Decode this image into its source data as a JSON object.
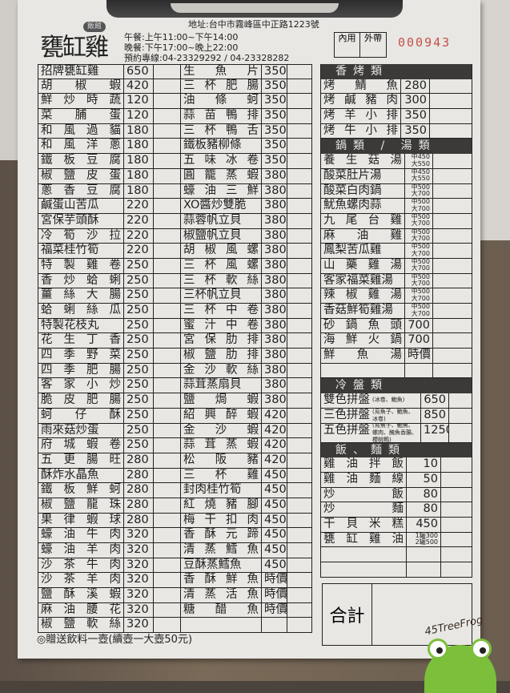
{
  "header": {
    "logo_text": "甕缸雞",
    "logo_badge": "飯館",
    "address": "地址:台中市霧峰區中正路1223號",
    "lunch": "午餐:上午11:00~下午14:00",
    "dinner": "晚餐:下午17:00~晚上22:00",
    "phone": "預約專線:04-23329292 / 04-23328282",
    "dine_in": "內用",
    "takeout": "外帶",
    "serial": "000943"
  },
  "left_items": [
    [
      "招牌甕缸雞",
      "650"
    ],
    [
      "胡 椒 蝦",
      "420"
    ],
    [
      "鮮 炒 時 蔬",
      "120"
    ],
    [
      "菜 脯 蛋",
      "120"
    ],
    [
      "和 風 過 貓",
      "180"
    ],
    [
      "和 風 洋 蔥",
      "180"
    ],
    [
      "鐵 板 豆 腐",
      "180"
    ],
    [
      "椒 鹽 皮 蛋",
      "180"
    ],
    [
      "蔥 香 豆 腐",
      "180"
    ],
    [
      "鹹蛋山苦瓜",
      "220"
    ],
    [
      "宮保芋頭酥",
      "220"
    ],
    [
      "冷 筍 沙 拉",
      "220"
    ],
    [
      "福菜桂竹筍",
      "220"
    ],
    [
      "特 製 雞 卷",
      "250"
    ],
    [
      "香 炒 蛤 蜊",
      "250"
    ],
    [
      "薑 絲 大 腸",
      "250"
    ],
    [
      "蛤 蜊 絲 瓜",
      "250"
    ],
    [
      "特製花枝丸",
      "250"
    ],
    [
      "花 生 丁 香",
      "250"
    ],
    [
      "四 季 野 菜",
      "250"
    ],
    [
      "四 季 肥 腸",
      "250"
    ],
    [
      "客 家 小 炒",
      "250"
    ],
    [
      "脆 皮 肥 腸",
      "250"
    ],
    [
      "蚵 仔 酥",
      "250"
    ],
    [
      "雨來菇炒蛋",
      "250"
    ],
    [
      "府 城 蝦 卷",
      "250"
    ],
    [
      "五 更 腸 旺",
      "280"
    ],
    [
      "酥炸水晶魚",
      "280"
    ],
    [
      "鐵 板 鮮 蚵",
      "280"
    ],
    [
      "椒 鹽 龍 珠",
      "280"
    ],
    [
      "果 律 蝦 球",
      "280"
    ],
    [
      "蠔 油 牛 肉",
      "320"
    ],
    [
      "蠔 油 羊 肉",
      "320"
    ],
    [
      "沙 茶 牛 肉",
      "320"
    ],
    [
      "沙 茶 羊 肉",
      "320"
    ],
    [
      "鹽 酥 溪 蝦",
      "320"
    ],
    [
      "麻 油 腰 花",
      "320"
    ],
    [
      "椒 鹽 軟 絲",
      "320"
    ]
  ],
  "middle_items": [
    [
      "生 魚 片",
      "350"
    ],
    [
      "三 杯 肥 腸",
      "350"
    ],
    [
      "油 條 蚵",
      "350"
    ],
    [
      "蒜 苗 鴨 排",
      "350"
    ],
    [
      "三 杯 鴨 舌",
      "350"
    ],
    [
      "鐵板豬柳條",
      "350"
    ],
    [
      "五 味 冰 卷",
      "350"
    ],
    [
      "圓 籠 蒸 蝦",
      "380"
    ],
    [
      "蠔 油 三 鮮",
      "380"
    ],
    [
      "XO醬炒雙脆",
      "380"
    ],
    [
      "蒜蓉帆立貝",
      "380"
    ],
    [
      "椒鹽帆立貝",
      "380"
    ],
    [
      "胡 椒 風 螺",
      "380"
    ],
    [
      "三 杯 風 螺",
      "380"
    ],
    [
      "三 杯 軟 絲",
      "380"
    ],
    [
      "三杯帆立貝",
      "380"
    ],
    [
      "三 杯 中 卷",
      "380"
    ],
    [
      "蜜 汁 中 卷",
      "380"
    ],
    [
      "宮 保 肋 排",
      "380"
    ],
    [
      "椒 鹽 肋 排",
      "380"
    ],
    [
      "金 沙 軟 絲",
      "380"
    ],
    [
      "蒜茸蒸扇貝",
      "380"
    ],
    [
      "鹽 焗 蝦",
      "380"
    ],
    [
      "紹 興 醉 蝦",
      "420"
    ],
    [
      "金 沙 蝦",
      "420"
    ],
    [
      "蒜 茸 蒸 蝦",
      "420"
    ],
    [
      "松 阪 豬",
      "420"
    ],
    [
      "三 杯 雞",
      "450"
    ],
    [
      "封肉桂竹筍",
      "450"
    ],
    [
      "紅 燒 豬 腳",
      "450"
    ],
    [
      "梅 干 扣 肉",
      "450"
    ],
    [
      "香 酥 元 蹄",
      "450"
    ],
    [
      "清 蒸 鱈 魚",
      "450"
    ],
    [
      "豆酥蒸鱈魚",
      "450"
    ],
    [
      "香 酥 鮮 魚",
      "時價"
    ],
    [
      "清 蒸 活 魚",
      "時價"
    ],
    [
      "糖 醋 魚",
      "時價"
    ],
    [
      "",
      ""
    ]
  ],
  "grilled": {
    "title": "香烤類",
    "items": [
      [
        "烤 鯖 魚",
        "280"
      ],
      [
        "烤 鹹 豬 肉",
        "300"
      ],
      [
        "烤 羊 小 排",
        "350"
      ],
      [
        "烤 牛 小 排",
        "350"
      ]
    ]
  },
  "soups": {
    "title": "鍋類 / 湯類",
    "items": [
      [
        "養 生 菇 湯",
        "中450",
        "大550"
      ],
      [
        "酸菜肚片湯",
        "中450",
        "大550"
      ],
      [
        "酸菜白肉鍋",
        "中500",
        "大700"
      ],
      [
        "魷魚螺肉蒜",
        "中500",
        "大700"
      ],
      [
        "九 尾 台 雞",
        "中500",
        "大700"
      ],
      [
        "麻 油 雞",
        "中500",
        "大700"
      ],
      [
        "鳳梨苦瓜雞",
        "中500",
        "大700"
      ],
      [
        "山 藥 雞 湯",
        "中500",
        "大700"
      ],
      [
        "客家福菜雞湯",
        "中500",
        "大700"
      ],
      [
        "辣 椒 雞 湯",
        "中500",
        "大700"
      ],
      [
        "香菇鮮筍雞湯",
        "中500",
        "大700"
      ],
      [
        "砂 鍋 魚 頭",
        "700"
      ],
      [
        "海 鮮 火 鍋",
        "700"
      ],
      [
        "鮮 魚 湯",
        "時價"
      ],
      [
        "",
        ""
      ]
    ]
  },
  "cold": {
    "title": "冷盤類",
    "items": [
      [
        "雙色拼盤",
        "(冰卷、鮑魚)",
        "650"
      ],
      [
        "三色拼盤",
        "(烏魚子、鮑魚、冰卷)",
        "850"
      ],
      [
        "五色拼盤",
        "(烏魚子、鮑魚、螺肉、醃魚香腸、櫻桃鴨)",
        "1250"
      ]
    ]
  },
  "rice": {
    "title": "飯、麵類",
    "items": [
      [
        "雞 油 拌 飯",
        "10"
      ],
      [
        "雞 油 麵 線",
        "50"
      ],
      [
        "炒 飯",
        "80"
      ],
      [
        "炒 麵",
        "80"
      ],
      [
        "干 貝 米 糕",
        "450"
      ],
      [
        "甕 缸 雞 油",
        "1罐300",
        "2罐500"
      ]
    ]
  },
  "total_label": "合計",
  "footer_note": "◎贈送飲料一壺(續壺一大壺50元)",
  "watermark": "45TreeFrog"
}
